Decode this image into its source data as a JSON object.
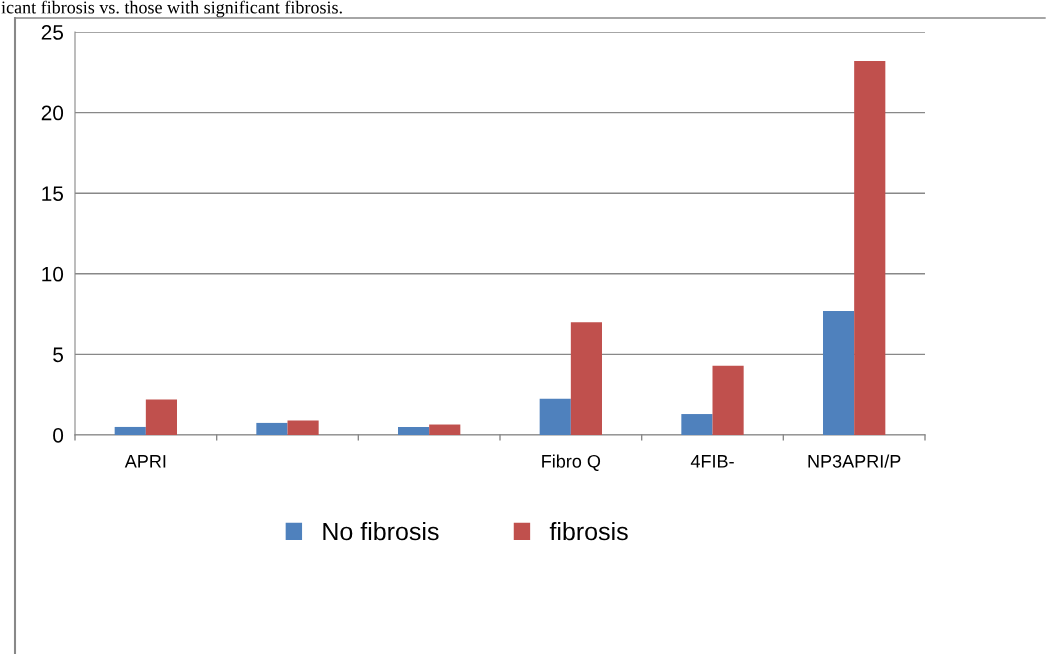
{
  "chart_data": {
    "type": "bar",
    "annotations": [
      "icant fibrosis vs. those with significant fibrosis."
    ],
    "categories": [
      "APRI",
      null,
      null,
      "Fibro Q",
      "4FIB-",
      "NP3APRI/P"
    ],
    "series": [
      {
        "name": "No fibrosis",
        "color": "#4f81bd",
        "values": [
          0.5,
          0.75,
          0.5,
          2.25,
          1.3,
          7.7
        ]
      },
      {
        "name": "fibrosis",
        "color": "#c0504d",
        "values": [
          2.2,
          0.9,
          0.65,
          7.0,
          4.3,
          23.2
        ]
      }
    ],
    "ylim": [
      0,
      25
    ],
    "yticks": [
      0,
      5,
      10,
      15,
      20,
      25
    ],
    "grid": "y",
    "legend": "bottom"
  }
}
